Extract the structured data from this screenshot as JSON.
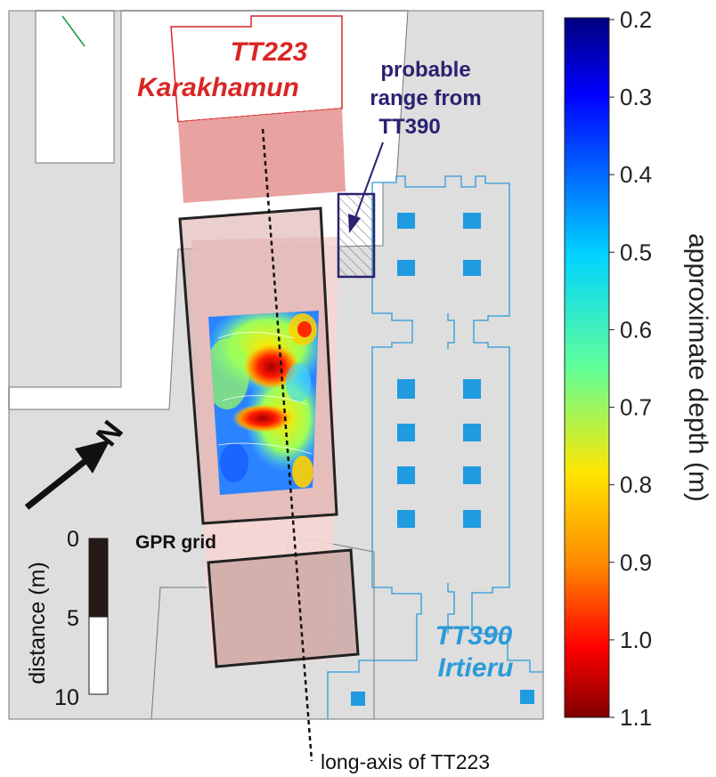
{
  "labels": {
    "tt223_number": "TT223",
    "tt223_name": "Karakhamun",
    "probable_line1": "probable",
    "probable_line2": "range from",
    "probable_line3": "TT390",
    "tt390_number": "TT390",
    "tt390_name": "Irtieru",
    "gpr_grid": "GPR grid",
    "long_axis": "long-axis of TT223",
    "north": "N"
  },
  "scale_bar": {
    "title": "distance (m)",
    "ticks": [
      "0",
      "5",
      "10"
    ]
  },
  "colorbar": {
    "title": "approximate depth (m)",
    "ticks": [
      "0.2",
      "0.3",
      "0.4",
      "0.5",
      "0.6",
      "0.7",
      "0.8",
      "0.9",
      "1.0",
      "1.1"
    ],
    "min": 0.2,
    "max": 1.1,
    "colormap": "jet"
  },
  "colors": {
    "tt223_red": "#d92525",
    "tt223_fill": "#e8a29f",
    "tt390_blue": "#2b9bd8",
    "tt390_pillar": "#1f9be0",
    "probable_purple": "#2a2270",
    "background_gray": "#dedede"
  }
}
